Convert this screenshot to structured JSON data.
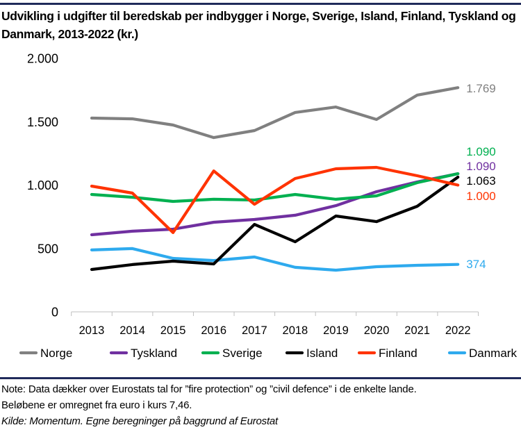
{
  "title": "Udvikling i udgifter til beredskab per indbygger i Norge, Sverige, Island, Finland, Tyskland og Danmark, 2013-2022 (kr.)",
  "notes": {
    "line1": "Note: Data dækker over Eurostats tal for ”fire protection” og ”civil defence” i de enkelte lande.",
    "line2": "Beløbene er omregnet fra euro i kurs 7,46.",
    "source": "Kilde: Momentum. Egne beregninger på baggrund af Eurostat"
  },
  "chart_data": {
    "type": "line",
    "title": "Udvikling i udgifter til beredskab per indbygger i Norge, Sverige, Island, Finland, Tyskland og Danmark, 2013-2022 (kr.)",
    "xlabel": "",
    "ylabel": "",
    "categories": [
      "2013",
      "2014",
      "2015",
      "2016",
      "2017",
      "2018",
      "2019",
      "2020",
      "2021",
      "2022"
    ],
    "ylim": [
      0,
      2000
    ],
    "yticks": [
      0,
      500,
      1000,
      1500,
      2000
    ],
    "ytick_labels": [
      "0",
      "500",
      "1.000",
      "1.500",
      "2.000"
    ],
    "grid": false,
    "legend_position": "bottom",
    "series": [
      {
        "name": "Norge",
        "color": "#808080",
        "values": [
          1529,
          1523,
          1474,
          1375,
          1430,
          1573,
          1616,
          1518,
          1710,
          1769
        ],
        "end_label": "1.769"
      },
      {
        "name": "Tyskland",
        "color": "#7030a0",
        "values": [
          608,
          636,
          652,
          707,
          729,
          762,
          838,
          948,
          1025,
          1090
        ],
        "end_label": "1.090"
      },
      {
        "name": "Sverige",
        "color": "#00b050",
        "values": [
          926,
          904,
          871,
          888,
          882,
          926,
          888,
          915,
          1019,
          1090
        ],
        "end_label": "1.090"
      },
      {
        "name": "Island",
        "color": "#000000",
        "values": [
          334,
          373,
          400,
          378,
          690,
          553,
          756,
          712,
          833,
          1063
        ],
        "end_label": "1.063"
      },
      {
        "name": "Finland",
        "color": "#ff3300",
        "values": [
          992,
          937,
          625,
          1112,
          849,
          1052,
          1129,
          1140,
          1074,
          1000
        ],
        "end_label": "1.000"
      },
      {
        "name": "Danmark",
        "color": "#2eaaee",
        "values": [
          488,
          499,
          422,
          405,
          433,
          351,
          329,
          356,
          367,
          374
        ],
        "end_label": "374"
      }
    ]
  }
}
